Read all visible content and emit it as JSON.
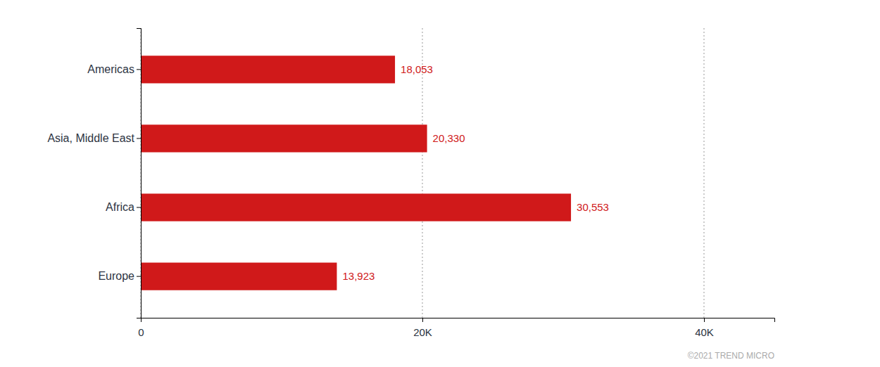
{
  "chart_data": {
    "type": "bar",
    "orientation": "horizontal",
    "categories": [
      "Americas",
      "Asia, Middle East",
      "Africa",
      "Europe"
    ],
    "values": [
      18053,
      20330,
      30553,
      13923
    ],
    "value_labels": [
      "18,053",
      "20,330",
      "30,553",
      "13,923"
    ],
    "data_labels": true,
    "color": "#D0191A",
    "xlim": [
      0,
      45000
    ],
    "xticks": [
      0,
      {
        "value": 20000,
        "label": "20K"
      },
      {
        "value": 40000,
        "label": "40K"
      }
    ],
    "grid": true,
    "annotations": [
      "©2021 TREND MICRO"
    ]
  }
}
